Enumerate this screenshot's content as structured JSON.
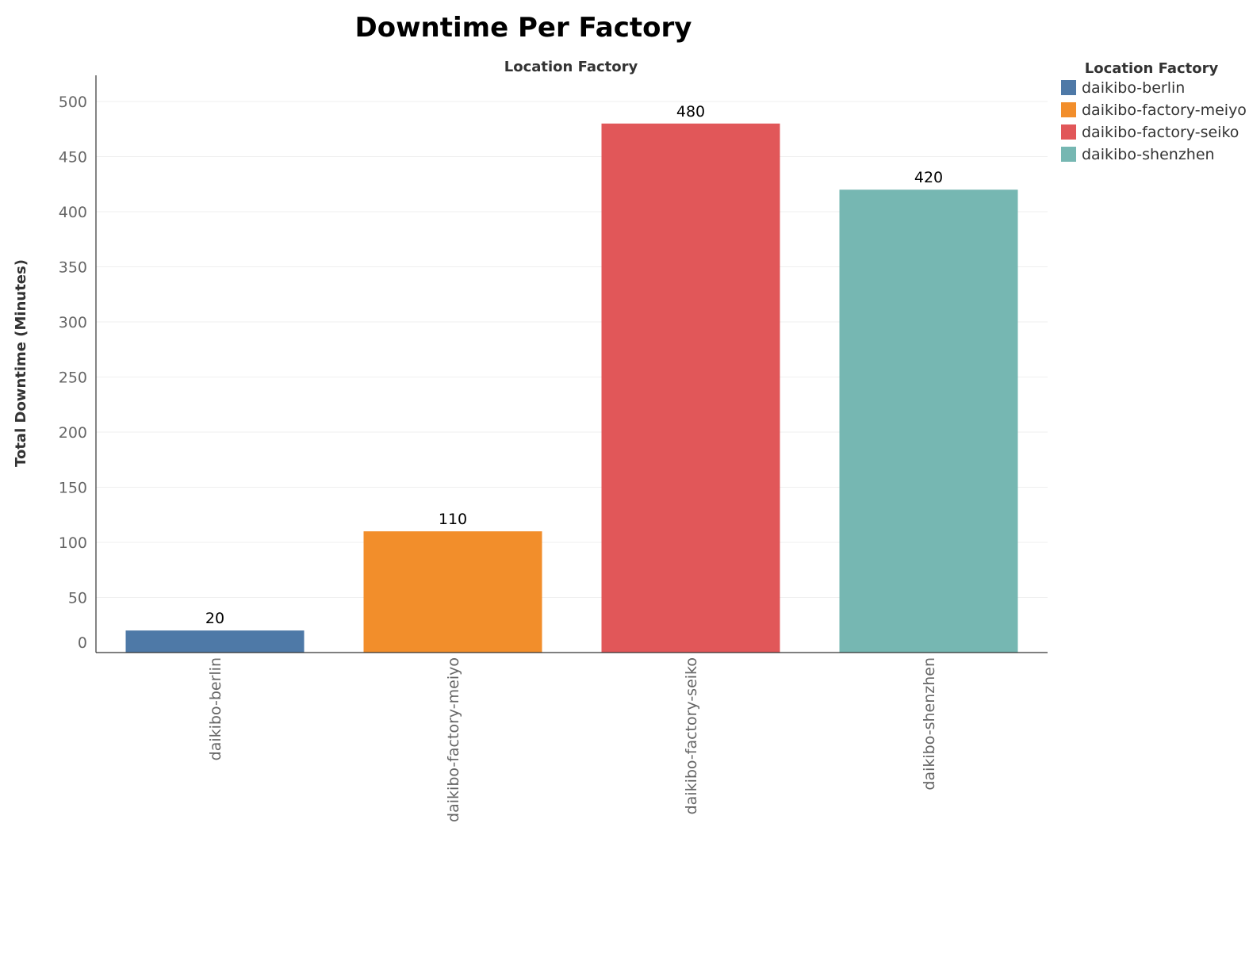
{
  "chart_data": {
    "type": "bar",
    "title": "Downtime Per Factory",
    "column_header": "Location Factory",
    "ylabel": "Total Downtime (Minutes)",
    "xlabel": "",
    "ylim": [
      0,
      525
    ],
    "yticks": [
      0,
      50,
      100,
      150,
      200,
      250,
      300,
      350,
      400,
      450,
      500
    ],
    "grid": true,
    "categories": [
      "daikibo-berlin",
      "daikibo-factory-meiyo",
      "daikibo-factory-seiko",
      "daikibo-shenzhen"
    ],
    "values": [
      20,
      110,
      480,
      420
    ],
    "colors": [
      "#4e79a7",
      "#f28e2b",
      "#e15759",
      "#76b7b2"
    ],
    "legend": {
      "title": "Location Factory",
      "position": "top-right",
      "entries": [
        "daikibo-berlin",
        "daikibo-factory-meiyo",
        "daikibo-factory-seiko",
        "daikibo-shenzhen"
      ]
    }
  }
}
